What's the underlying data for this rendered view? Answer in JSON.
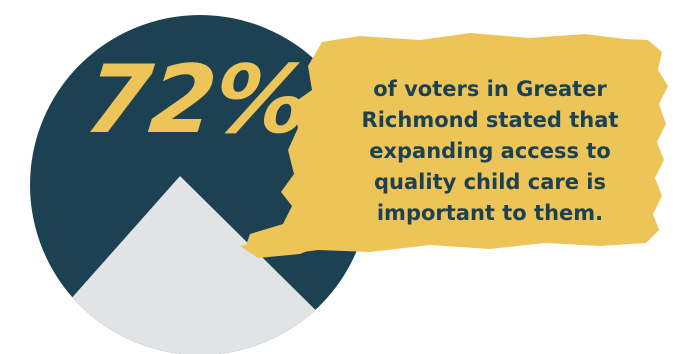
{
  "stat": {
    "value": "72%",
    "caption": "of voters in Greater Richmond stated that expanding access to quality child care is important to them."
  },
  "colors": {
    "circle": "#1c4152",
    "mountain": "#e2e3e5",
    "brush": "#ecc458",
    "value_text": "#ecc458",
    "caption_text": "#1c4152",
    "background": "#ffffff"
  }
}
